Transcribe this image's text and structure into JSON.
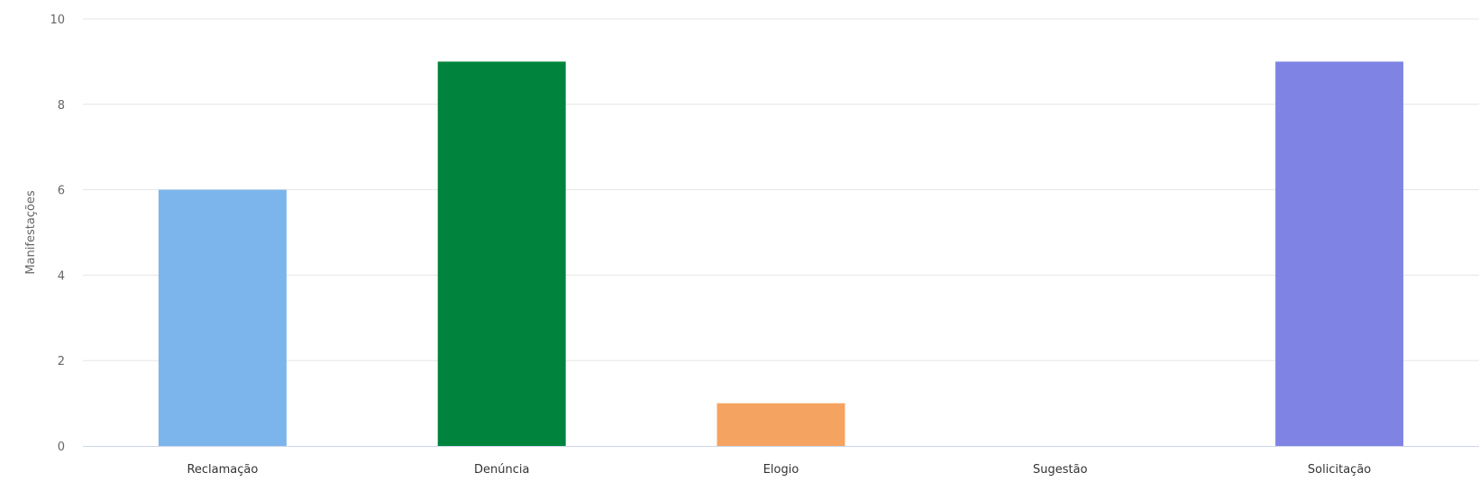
{
  "chart_data": {
    "type": "bar",
    "title": "",
    "xlabel": "",
    "ylabel": "Manifestações",
    "categories": [
      "Reclamação",
      "Denúncia",
      "Elogio",
      "Sugestão",
      "Solicitação"
    ],
    "values": [
      6,
      9,
      1,
      0,
      9
    ],
    "colors": [
      "#7cb5ec",
      "#00843d",
      "#f4a460",
      "#9aa0e8",
      "#7f84e4"
    ],
    "ylim": [
      0,
      10
    ],
    "yticks": [
      0,
      2,
      4,
      6,
      8,
      10
    ],
    "grid": true,
    "legend": "none"
  }
}
